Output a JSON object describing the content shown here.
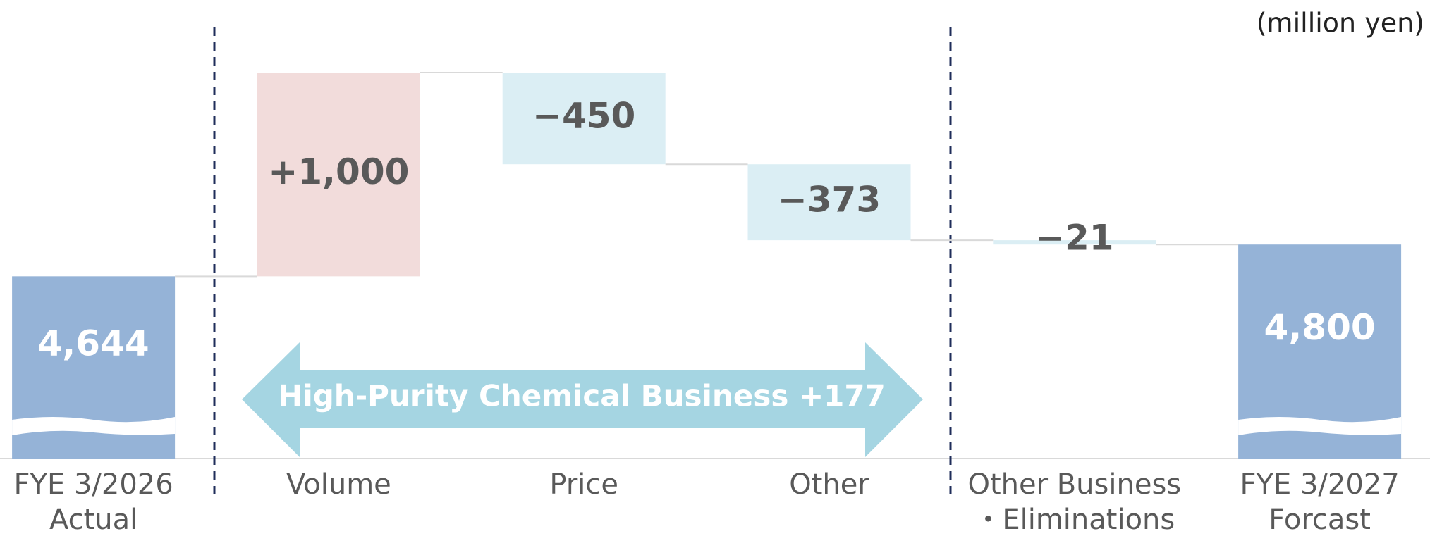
{
  "chart_data": {
    "type": "waterfall",
    "unit_label": "(million yen)",
    "categories": [
      "FYE 3/2026\nActual",
      "Volume",
      "Price",
      "Other",
      "Other Business\n・Eliminations",
      "FYE 3/2027\nForcast"
    ],
    "values": [
      4644,
      1000,
      -450,
      -373,
      -21,
      4800
    ],
    "value_labels": [
      "4,644",
      "+1,000",
      "−450",
      "−373",
      "−21",
      "4,800"
    ],
    "kinds": [
      "total",
      "delta",
      "delta",
      "delta",
      "delta",
      "total"
    ],
    "colors": {
      "total": "#95b3d7",
      "increase": "#f2dcdb",
      "decrease": "#dbeef4"
    },
    "ylim": [
      3750,
      6000
    ],
    "annotation": "High-Purity Chemical Business +177"
  }
}
